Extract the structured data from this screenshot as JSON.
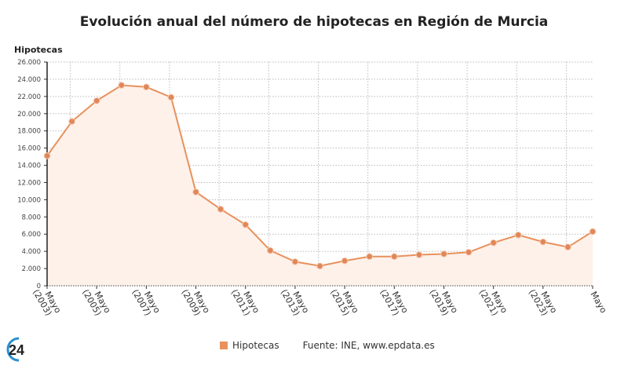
{
  "title": "Evolución anual del número de hipotecas en Región de Murcia",
  "legend": {
    "label": "Hipotecas",
    "source": "Fuente: INE, www.epdata.es"
  },
  "logo_text": "24",
  "colors": {
    "line": "#e8915c",
    "marker": "#e0875a",
    "fill": "#fdf1ea"
  },
  "chart_data": {
    "type": "line",
    "title": "Evolución anual del número de hipotecas en Región de Murcia",
    "ylabel": "Hipotecas",
    "xlabel": "",
    "ylim": [
      0,
      26000
    ],
    "yticks": [
      "0",
      "2.000",
      "4.000",
      "6.000",
      "8.000",
      "10.000",
      "12.000",
      "14.000",
      "16.000",
      "18.000",
      "20.000",
      "22.000",
      "24.000",
      "26.000"
    ],
    "x": [
      2003,
      2004,
      2005,
      2006,
      2007,
      2008,
      2009,
      2010,
      2011,
      2012,
      2013,
      2014,
      2015,
      2016,
      2017,
      2018,
      2019,
      2020,
      2021,
      2022,
      2023,
      2024,
      2025
    ],
    "xticks": [
      "Mayo (2003)",
      "Mayo (2005)",
      "Mayo (2007)",
      "Mayo (2009)",
      "Mayo (2011)",
      "Mayo (2013)",
      "Mayo (2015)",
      "Mayo (2017)",
      "Mayo (2019)",
      "Mayo (2021)",
      "Mayo (2023)",
      "Mayo"
    ],
    "series": [
      {
        "name": "Hipotecas",
        "values": [
          15100,
          19100,
          21500,
          23300,
          23100,
          21900,
          10900,
          8900,
          7100,
          4100,
          2800,
          2300,
          2900,
          3400,
          3400,
          3600,
          3700,
          3900,
          5000,
          5900,
          5100,
          4500,
          6300
        ]
      }
    ],
    "grid": true,
    "legend_position": "bottom"
  }
}
